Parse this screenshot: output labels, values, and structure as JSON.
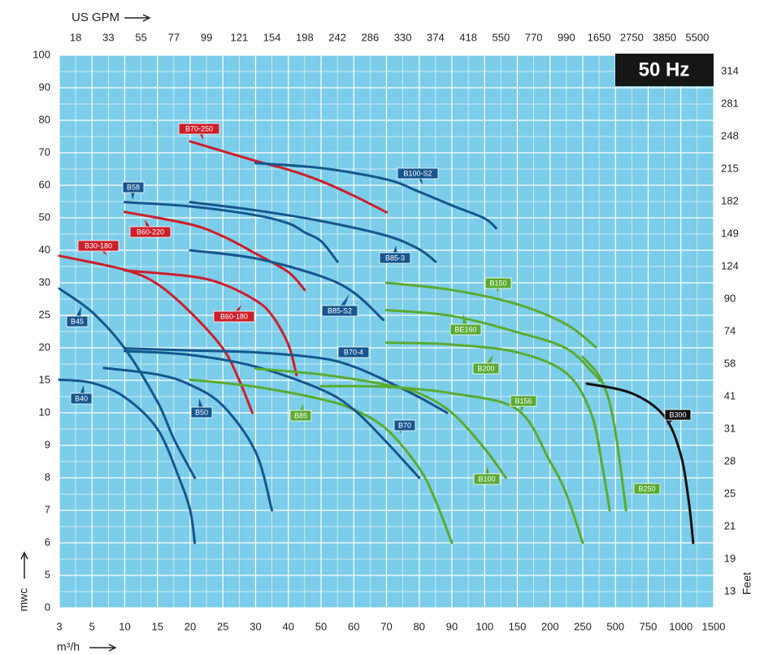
{
  "chart_data": {
    "type": "line",
    "badge": "50 Hz",
    "x_label": "m³/h",
    "y_label": "mwc",
    "top_label": "US GPM",
    "right_label": "Feet",
    "xscale": "tick-piecewise",
    "yscale": "tick-piecewise",
    "grid": true,
    "xlim": [
      3,
      1500
    ],
    "ylim": [
      0,
      100
    ],
    "xticks": [
      3,
      5,
      10,
      15,
      20,
      25,
      30,
      40,
      50,
      60,
      70,
      80,
      90,
      100,
      150,
      200,
      250,
      500,
      750,
      1000,
      1500
    ],
    "yticks": [
      0,
      5,
      6,
      7,
      8,
      9,
      10,
      15,
      20,
      25,
      30,
      40,
      50,
      60,
      70,
      80,
      90,
      100
    ],
    "top_ticks": [
      18,
      33,
      55,
      77,
      99,
      121,
      154,
      198,
      242,
      286,
      330,
      374,
      418,
      550,
      770,
      990,
      1650,
      2750,
      3850,
      5500
    ],
    "right_ticks": [
      314,
      281,
      248,
      215,
      182,
      149,
      124,
      90,
      74,
      58,
      41,
      31,
      28,
      25,
      21,
      19,
      13
    ],
    "series": [
      {
        "name": "B70-250",
        "color": "#cc1f2a",
        "x": [
          20,
          30,
          40,
          50,
          60,
          70
        ],
        "values": [
          73.5,
          67.5,
          64.8,
          61.3,
          56.8,
          51.7
        ]
      },
      {
        "name": "B100-S2",
        "color": "#17568f",
        "x": [
          30,
          50,
          70,
          80,
          90,
          100,
          117.5
        ],
        "values": [
          66.8,
          65.3,
          61.8,
          58,
          53.8,
          49.8,
          46.8
        ]
      },
      {
        "name": "B58",
        "color": "#17568f",
        "x": [
          10,
          20,
          30,
          40,
          45,
          50,
          55
        ],
        "values": [
          54.8,
          53.5,
          50.8,
          48.3,
          45.5,
          42.8,
          36.5
        ]
      },
      {
        "name": "B60-220",
        "color": "#cc1f2a",
        "x": [
          10,
          20,
          25,
          30,
          40,
          45
        ],
        "values": [
          51.8,
          48,
          44.3,
          39,
          33.3,
          28.9
        ]
      },
      {
        "name": "B30-180",
        "color": "#cc1f2a",
        "x": [
          3,
          10,
          15,
          20,
          25,
          27.5,
          29.5
        ],
        "values": [
          38.3,
          34,
          29.8,
          25.5,
          19.9,
          15,
          10
        ]
      },
      {
        "name": "B85-3",
        "color": "#17568f",
        "x": [
          20,
          30,
          50,
          70,
          80,
          85
        ],
        "values": [
          54.8,
          52.3,
          49,
          44.5,
          40.3,
          36.5
        ]
      },
      {
        "name": "B85-S2",
        "color": "#17568f",
        "x": [
          20,
          30,
          50,
          60,
          69
        ],
        "values": [
          40,
          37.5,
          32,
          28.5,
          24.3
        ]
      },
      {
        "name": "B45",
        "color": "#17568f",
        "x": [
          3,
          5,
          10,
          15,
          17.5,
          20.7
        ],
        "values": [
          29.1,
          25.5,
          19.9,
          11.7,
          9.2,
          8
        ]
      },
      {
        "name": "B60-180",
        "color": "#cc1f2a",
        "x": [
          10,
          20,
          25,
          30,
          35,
          40,
          42.5
        ],
        "values": [
          33.8,
          32,
          29.8,
          27.3,
          25,
          20.5,
          15.8
        ]
      },
      {
        "name": "B70-4",
        "color": "#17568f",
        "x": [
          10,
          20,
          30,
          50,
          60,
          70,
          80,
          88.5
        ],
        "values": [
          19.9,
          19.6,
          19.3,
          18.4,
          17.1,
          14.9,
          12.4,
          10
        ]
      },
      {
        "name": "B40",
        "color": "#17568f",
        "x": [
          3,
          5,
          10,
          15,
          18.3,
          20,
          20.7
        ],
        "values": [
          15.1,
          14.6,
          12.4,
          9.5,
          8,
          7,
          6
        ]
      },
      {
        "name": "B50",
        "color": "#17568f",
        "x": [
          6.8,
          15,
          20,
          25,
          30,
          35
        ],
        "values": [
          16.9,
          15.9,
          14.3,
          11.1,
          8.8,
          7
        ]
      },
      {
        "name": "B85",
        "color": "#5aab32",
        "x": [
          20,
          30,
          50,
          60,
          70,
          80,
          85,
          90
        ],
        "values": [
          15.1,
          14,
          12.1,
          10.5,
          9.5,
          8.3,
          7.3,
          6
        ]
      },
      {
        "name": "B70",
        "color": "#17568f",
        "x": [
          10,
          20,
          30,
          50,
          60,
          70,
          80
        ],
        "values": [
          19.5,
          18.9,
          17.1,
          13.6,
          10.5,
          9.1,
          8
        ]
      },
      {
        "name": "B150",
        "color": "#5aab32",
        "x": [
          70,
          90,
          150,
          225,
          350
        ],
        "values": [
          30,
          28.9,
          26.7,
          23.6,
          20.1
        ]
      },
      {
        "name": "BE160",
        "color": "#5aab32",
        "x": [
          70,
          90,
          150,
          225,
          331,
          381
        ],
        "values": [
          25.8,
          24.9,
          22.4,
          19.9,
          16.1,
          14.9
        ]
      },
      {
        "name": "B200",
        "color": "#5aab32",
        "x": [
          70,
          90,
          150,
          225,
          312.5,
          393.75,
          456
        ],
        "values": [
          20.8,
          20.5,
          19.3,
          16.1,
          10,
          8.5,
          7
        ]
      },
      {
        "name": "B156",
        "color": "#5aab32",
        "x": [
          50,
          70,
          90,
          150,
          200,
          225,
          250
        ],
        "values": [
          14.1,
          14,
          13,
          10.5,
          8.5,
          7.5,
          6
        ]
      },
      {
        "name": "B100",
        "color": "#5aab32",
        "x": [
          30,
          50,
          70,
          80,
          90,
          100,
          132.5
        ],
        "values": [
          16.8,
          15.9,
          14.3,
          13,
          10,
          8.9,
          8
        ]
      },
      {
        "name": "B250",
        "color": "#5aab32",
        "x": [
          250,
          394,
          488,
          581
        ],
        "values": [
          18.6,
          15,
          9.7,
          7
        ]
      },
      {
        "name": "B300",
        "color": "#111111",
        "x": [
          281,
          625,
          872,
          1000,
          1125,
          1187.5
        ],
        "values": [
          14.5,
          13,
          9.9,
          8.7,
          7.2,
          6
        ]
      }
    ]
  }
}
